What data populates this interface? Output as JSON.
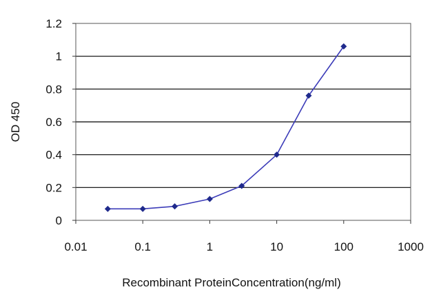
{
  "chart_data": {
    "type": "line",
    "title": "",
    "xlabel": "Recombinant ProteinConcentration(ng/ml)",
    "ylabel": "OD 450",
    "x_scale": "log",
    "xlim": [
      0.01,
      1000
    ],
    "ylim": [
      0,
      1.2
    ],
    "x_ticks": [
      "0.01",
      "0.1",
      "1",
      "10",
      "100",
      "1000"
    ],
    "y_ticks": [
      "0",
      "0.2",
      "0.4",
      "0.6",
      "0.8",
      "1",
      "1.2"
    ],
    "grid": "horizontal",
    "legend": "none",
    "series": [
      {
        "x": [
          0.03,
          0.1,
          0.3,
          1,
          3,
          10,
          30,
          100
        ],
        "y": [
          0.07,
          0.07,
          0.085,
          0.13,
          0.21,
          0.4,
          0.76,
          1.06
        ]
      }
    ],
    "colors": {
      "line": "#3b3bb8",
      "marker": "#1f2a8c",
      "grid": "#000000"
    }
  }
}
